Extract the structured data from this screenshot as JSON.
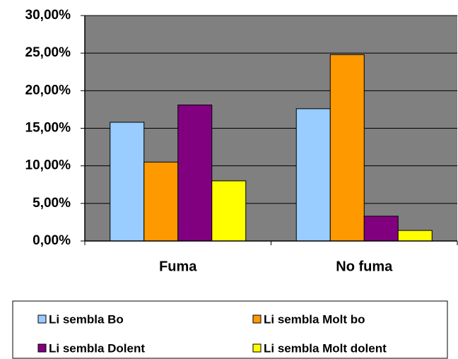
{
  "chart_data": {
    "type": "bar",
    "categories": [
      "Fuma",
      "No fuma"
    ],
    "series": [
      {
        "name": "Li sembla Bo",
        "color": "#99ccff",
        "values": [
          15.8,
          17.6
        ]
      },
      {
        "name": "Li sembla Molt bo",
        "color": "#ff9900",
        "values": [
          10.5,
          24.8
        ]
      },
      {
        "name": "Li sembla Dolent",
        "color": "#800080",
        "values": [
          18.1,
          3.3
        ]
      },
      {
        "name": "Li sembla Molt dolent",
        "color": "#ffff00",
        "values": [
          8.0,
          1.4
        ]
      }
    ],
    "ylim": [
      0,
      30
    ],
    "yticks": [
      {
        "value": 0,
        "label": "0,00%"
      },
      {
        "value": 5,
        "label": "5,00%"
      },
      {
        "value": 10,
        "label": "10,00%"
      },
      {
        "value": 15,
        "label": "15,00%"
      },
      {
        "value": 20,
        "label": "20,00%"
      },
      {
        "value": 25,
        "label": "25,00%"
      },
      {
        "value": 30,
        "label": "30,00%"
      }
    ],
    "grid": true,
    "legend": "bottom",
    "plot_background": "#808080"
  }
}
